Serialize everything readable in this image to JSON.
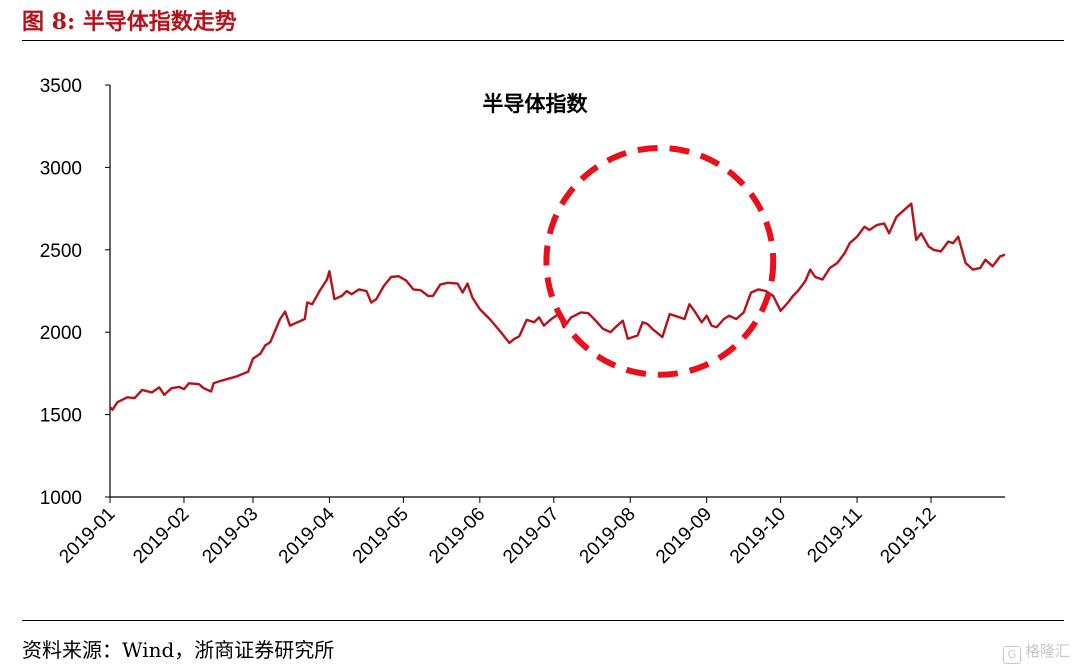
{
  "figure": {
    "title": "图  8:  半导体指数走势",
    "source": "资料来源：Wind，浙商证券研究所",
    "watermark": "格隆汇",
    "watermark_icon": "G"
  },
  "colors": {
    "accent": "#b5121b",
    "line": "#b5121b",
    "highlight": "#e8101a"
  },
  "chart_data": {
    "type": "line",
    "title": "",
    "xlabel": "",
    "ylabel": "",
    "ylim": [
      1000,
      3500
    ],
    "yticks": [
      1000,
      1500,
      2000,
      2500,
      3000,
      3500
    ],
    "xlim": [
      "2019-01-02",
      "2019-12-31"
    ],
    "xticks": [
      "2019-01",
      "2019-02",
      "2019-03",
      "2019-04",
      "2019-05",
      "2019-06",
      "2019-07",
      "2019-08",
      "2019-09",
      "2019-10",
      "2019-11",
      "2019-12"
    ],
    "grid": false,
    "legend": "none",
    "annotations": [
      {
        "type": "series-label",
        "text": "半导体指数"
      },
      {
        "type": "dashed-circle",
        "from": "2019-07-01",
        "to": "2019-10-01",
        "center_x": "2019-08-13",
        "center_y": 2430
      }
    ],
    "series": [
      {
        "name": "半导体指数",
        "color": "#b5121b",
        "points": [
          [
            "2019-01-02",
            1545
          ],
          [
            "2019-01-03",
            1530
          ],
          [
            "2019-01-05",
            1575
          ],
          [
            "2019-01-09",
            1605
          ],
          [
            "2019-01-12",
            1600
          ],
          [
            "2019-01-15",
            1650
          ],
          [
            "2019-01-19",
            1635
          ],
          [
            "2019-01-22",
            1665
          ],
          [
            "2019-01-24",
            1620
          ],
          [
            "2019-01-27",
            1660
          ],
          [
            "2019-01-30",
            1668
          ],
          [
            "2019-02-01",
            1655
          ],
          [
            "2019-02-03",
            1690
          ],
          [
            "2019-02-07",
            1685
          ],
          [
            "2019-02-09",
            1660
          ],
          [
            "2019-02-12",
            1640
          ],
          [
            "2019-02-13",
            1690
          ],
          [
            "2019-02-16",
            1705
          ],
          [
            "2019-02-22",
            1730
          ],
          [
            "2019-02-27",
            1760
          ],
          [
            "2019-03-01",
            1840
          ],
          [
            "2019-03-04",
            1870
          ],
          [
            "2019-03-06",
            1920
          ],
          [
            "2019-03-08",
            1940
          ],
          [
            "2019-03-12",
            2080
          ],
          [
            "2019-03-14",
            2125
          ],
          [
            "2019-03-16",
            2040
          ],
          [
            "2019-03-19",
            2060
          ],
          [
            "2019-03-22",
            2080
          ],
          [
            "2019-03-23",
            2180
          ],
          [
            "2019-03-25",
            2170
          ],
          [
            "2019-03-28",
            2250
          ],
          [
            "2019-03-31",
            2320
          ],
          [
            "2019-04-01",
            2370
          ],
          [
            "2019-04-03",
            2200
          ],
          [
            "2019-04-06",
            2220
          ],
          [
            "2019-04-08",
            2250
          ],
          [
            "2019-04-10",
            2230
          ],
          [
            "2019-04-13",
            2260
          ],
          [
            "2019-04-16",
            2250
          ],
          [
            "2019-04-18",
            2180
          ],
          [
            "2019-04-20",
            2200
          ],
          [
            "2019-04-23",
            2280
          ],
          [
            "2019-04-26",
            2335
          ],
          [
            "2019-04-29",
            2340
          ],
          [
            "2019-05-02",
            2315
          ],
          [
            "2019-05-05",
            2260
          ],
          [
            "2019-05-08",
            2255
          ],
          [
            "2019-05-11",
            2220
          ],
          [
            "2019-05-13",
            2220
          ],
          [
            "2019-05-16",
            2290
          ],
          [
            "2019-05-19",
            2300
          ],
          [
            "2019-05-23",
            2295
          ],
          [
            "2019-05-25",
            2240
          ],
          [
            "2019-05-27",
            2295
          ],
          [
            "2019-05-29",
            2210
          ],
          [
            "2019-06-01",
            2140
          ],
          [
            "2019-06-05",
            2080
          ],
          [
            "2019-06-09",
            2010
          ],
          [
            "2019-06-13",
            1935
          ],
          [
            "2019-06-15",
            1960
          ],
          [
            "2019-06-17",
            1975
          ],
          [
            "2019-06-20",
            2075
          ],
          [
            "2019-06-23",
            2060
          ],
          [
            "2019-06-25",
            2090
          ],
          [
            "2019-06-27",
            2040
          ],
          [
            "2019-06-30",
            2080
          ],
          [
            "2019-07-03",
            2110
          ],
          [
            "2019-07-05",
            2030
          ],
          [
            "2019-07-08",
            2090
          ],
          [
            "2019-07-12",
            2120
          ],
          [
            "2019-07-15",
            2115
          ],
          [
            "2019-07-18",
            2070
          ],
          [
            "2019-07-21",
            2020
          ],
          [
            "2019-07-24",
            2000
          ],
          [
            "2019-07-26",
            2030
          ],
          [
            "2019-07-29",
            2070
          ],
          [
            "2019-07-31",
            1960
          ],
          [
            "2019-08-04",
            1980
          ],
          [
            "2019-08-06",
            2060
          ],
          [
            "2019-08-08",
            2050
          ],
          [
            "2019-08-10",
            2020
          ],
          [
            "2019-08-14",
            1970
          ],
          [
            "2019-08-17",
            2110
          ],
          [
            "2019-08-19",
            2100
          ],
          [
            "2019-08-23",
            2080
          ],
          [
            "2019-08-25",
            2170
          ],
          [
            "2019-08-27",
            2130
          ],
          [
            "2019-08-30",
            2060
          ],
          [
            "2019-09-01",
            2100
          ],
          [
            "2019-09-03",
            2040
          ],
          [
            "2019-09-05",
            2030
          ],
          [
            "2019-09-08",
            2080
          ],
          [
            "2019-09-10",
            2100
          ],
          [
            "2019-09-13",
            2080
          ],
          [
            "2019-09-16",
            2120
          ],
          [
            "2019-09-19",
            2240
          ],
          [
            "2019-09-22",
            2260
          ],
          [
            "2019-09-25",
            2250
          ],
          [
            "2019-09-28",
            2220
          ],
          [
            "2019-10-01",
            2130
          ],
          [
            "2019-10-04",
            2180
          ],
          [
            "2019-10-06",
            2220
          ],
          [
            "2019-10-08",
            2250
          ],
          [
            "2019-10-11",
            2310
          ],
          [
            "2019-10-13",
            2380
          ],
          [
            "2019-10-15",
            2335
          ],
          [
            "2019-10-18",
            2320
          ],
          [
            "2019-10-21",
            2390
          ],
          [
            "2019-10-24",
            2420
          ],
          [
            "2019-10-27",
            2480
          ],
          [
            "2019-10-29",
            2540
          ],
          [
            "2019-11-01",
            2580
          ],
          [
            "2019-11-04",
            2640
          ],
          [
            "2019-11-06",
            2620
          ],
          [
            "2019-11-09",
            2650
          ],
          [
            "2019-11-12",
            2660
          ],
          [
            "2019-11-14",
            2600
          ],
          [
            "2019-11-17",
            2700
          ],
          [
            "2019-11-20",
            2740
          ],
          [
            "2019-11-23",
            2780
          ],
          [
            "2019-11-25",
            2560
          ],
          [
            "2019-11-27",
            2600
          ],
          [
            "2019-11-30",
            2520
          ],
          [
            "2019-12-02",
            2500
          ],
          [
            "2019-12-05",
            2490
          ],
          [
            "2019-12-08",
            2550
          ],
          [
            "2019-12-10",
            2540
          ],
          [
            "2019-12-12",
            2580
          ],
          [
            "2019-12-15",
            2420
          ],
          [
            "2019-12-18",
            2380
          ],
          [
            "2019-12-21",
            2390
          ],
          [
            "2019-12-23",
            2440
          ],
          [
            "2019-12-26",
            2400
          ],
          [
            "2019-12-29",
            2460
          ],
          [
            "2019-12-31",
            2470
          ]
        ]
      }
    ]
  }
}
